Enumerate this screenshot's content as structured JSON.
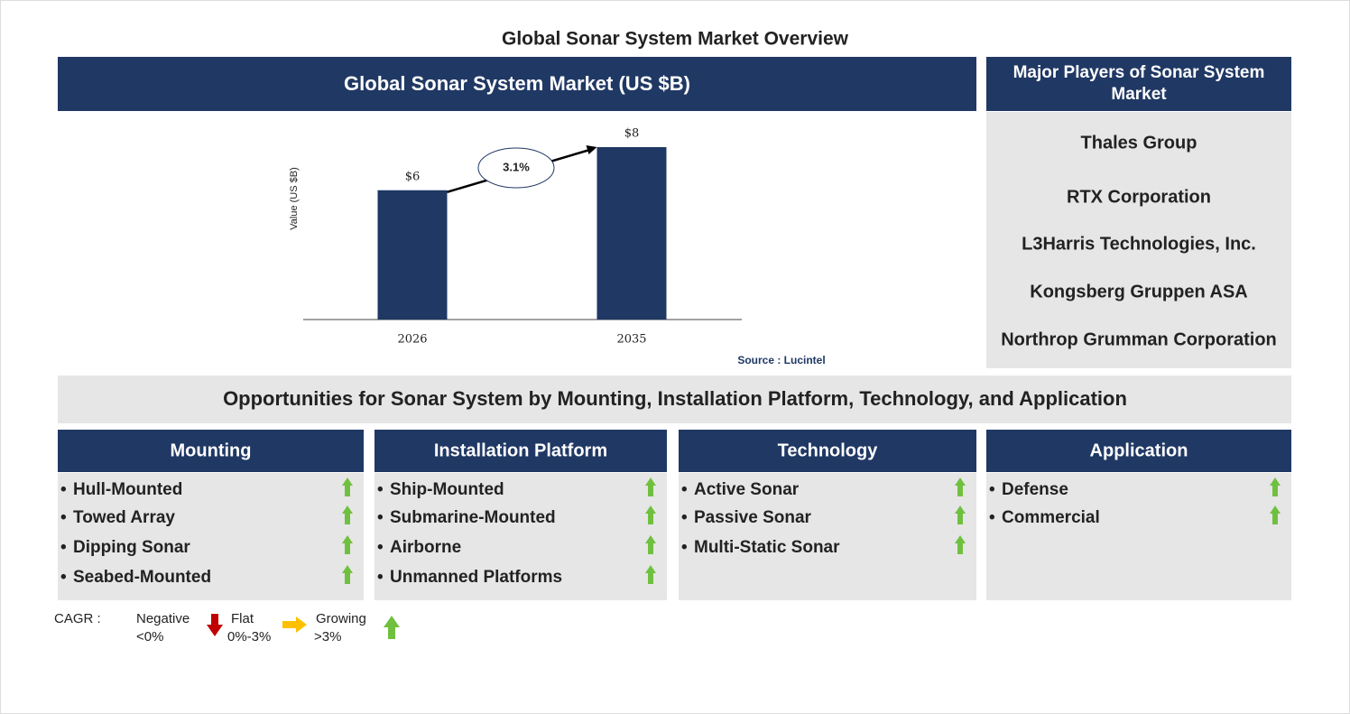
{
  "title": "Global Sonar System Market Overview",
  "chart_data": {
    "type": "bar",
    "title": "Global Sonar System Market (US $B)",
    "y_label": "Value (US $B)",
    "categories": [
      "2026",
      "2035"
    ],
    "values": [
      6,
      8
    ],
    "value_labels": [
      "$6",
      "$8"
    ],
    "color": "#1f3864",
    "cagr_label": "3.1%",
    "source": "Source : Lucintel"
  },
  "players": {
    "title": "Major Players of Sonar System Market",
    "items": [
      "Thales Group",
      "RTX Corporation",
      "L3Harris Technologies, Inc.",
      "Kongsberg Gruppen ASA",
      "Northrop Grumman Corporation"
    ]
  },
  "opportunities": {
    "title": "Opportunities for Sonar System by Mounting, Installation Platform, Technology, and Application",
    "segments": [
      {
        "title": "Mounting",
        "items": [
          "Hull-Mounted",
          "Towed Array",
          "Dipping Sonar",
          "Seabed-Mounted"
        ],
        "trend": "growing"
      },
      {
        "title": "Installation Platform",
        "items": [
          "Ship-Mounted",
          "Submarine-Mounted",
          "Airborne",
          "Unmanned Platforms"
        ],
        "trend": "growing"
      },
      {
        "title": "Technology",
        "items": [
          "Active Sonar",
          "Passive Sonar",
          "Multi-Static Sonar"
        ],
        "trend": "growing"
      },
      {
        "title": "Application",
        "items": [
          "Defense",
          "Commercial"
        ],
        "trend": "growing"
      }
    ]
  },
  "legend": {
    "label": "CAGR :",
    "negative": [
      "Negative",
      "<0%"
    ],
    "flat": [
      "Flat",
      "0%-3%"
    ],
    "growing": [
      "Growing",
      ">3%"
    ]
  }
}
